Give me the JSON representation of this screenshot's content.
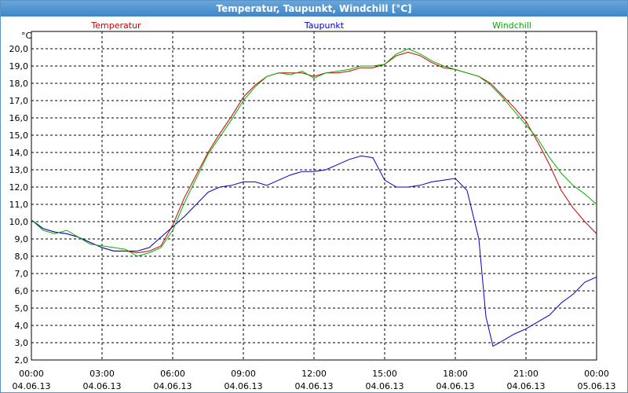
{
  "window": {
    "title": "Temperatur, Taupunkt, Windchill [°C]"
  },
  "chart_data": {
    "type": "line",
    "title": "Temperatur, Taupunkt, Windchill [°C]",
    "ylabel": "°C",
    "ylim": [
      2.0,
      21.0
    ],
    "xlim": [
      0,
      24
    ],
    "grid": true,
    "legend_position": "top",
    "y_ticks": [
      2.0,
      3.0,
      4.0,
      5.0,
      6.0,
      7.0,
      8.0,
      9.0,
      10.0,
      11.0,
      12.0,
      13.0,
      14.0,
      15.0,
      16.0,
      17.0,
      18.0,
      19.0,
      20.0
    ],
    "y_tick_labels": [
      "2,0",
      "3,0",
      "4,0",
      "5,0",
      "6,0",
      "7,0",
      "8,0",
      "9,0",
      "10,0",
      "11,0",
      "12,0",
      "13,0",
      "14,0",
      "15,0",
      "16,0",
      "17,0",
      "18,0",
      "19,0",
      "20,0"
    ],
    "x_ticks": [
      {
        "h": 0,
        "time": "00:00",
        "date": "04.06.13"
      },
      {
        "h": 3,
        "time": "03:00",
        "date": "04.06.13"
      },
      {
        "h": 6,
        "time": "06:00",
        "date": "04.06.13"
      },
      {
        "h": 9,
        "time": "09:00",
        "date": "04.06.13"
      },
      {
        "h": 12,
        "time": "12:00",
        "date": "04.06.13"
      },
      {
        "h": 15,
        "time": "15:00",
        "date": "04.06.13"
      },
      {
        "h": 18,
        "time": "18:00",
        "date": "04.06.13"
      },
      {
        "h": 21,
        "time": "21:00",
        "date": "04.06.13"
      },
      {
        "h": 24,
        "time": "00:00",
        "date": "05.06.13"
      }
    ],
    "series": [
      {
        "name": "Temperatur",
        "color": "#d00000",
        "points": [
          [
            0,
            10.1
          ],
          [
            0.5,
            9.6
          ],
          [
            1,
            9.4
          ],
          [
            1.5,
            9.3
          ],
          [
            2,
            9.1
          ],
          [
            2.5,
            8.8
          ],
          [
            3,
            8.5
          ],
          [
            3.5,
            8.3
          ],
          [
            4,
            8.3
          ],
          [
            4.5,
            8.2
          ],
          [
            5,
            8.3
          ],
          [
            5.5,
            8.6
          ],
          [
            6,
            9.8
          ],
          [
            6.5,
            11.4
          ],
          [
            7,
            12.7
          ],
          [
            7.5,
            14.0
          ],
          [
            8,
            15.1
          ],
          [
            8.5,
            16.1
          ],
          [
            9,
            17.2
          ],
          [
            9.5,
            17.9
          ],
          [
            10,
            18.4
          ],
          [
            10.5,
            18.6
          ],
          [
            11,
            18.6
          ],
          [
            11.5,
            18.6
          ],
          [
            12,
            18.4
          ],
          [
            12.5,
            18.6
          ],
          [
            13,
            18.6
          ],
          [
            13.5,
            18.7
          ],
          [
            14,
            18.9
          ],
          [
            14.5,
            18.9
          ],
          [
            15,
            19.1
          ],
          [
            15.5,
            19.6
          ],
          [
            16,
            19.8
          ],
          [
            16.5,
            19.6
          ],
          [
            17,
            19.2
          ],
          [
            17.5,
            18.9
          ],
          [
            18,
            18.8
          ],
          [
            18.5,
            18.6
          ],
          [
            19,
            18.4
          ],
          [
            19.5,
            18.0
          ],
          [
            20,
            17.3
          ],
          [
            20.5,
            16.6
          ],
          [
            21,
            15.8
          ],
          [
            21.5,
            14.6
          ],
          [
            22,
            13.3
          ],
          [
            22.5,
            11.8
          ],
          [
            23,
            10.8
          ],
          [
            23.5,
            10.0
          ],
          [
            24,
            9.3
          ]
        ]
      },
      {
        "name": "Taupunkt",
        "color": "#0000cc",
        "points": [
          [
            0,
            10.1
          ],
          [
            0.5,
            9.6
          ],
          [
            1,
            9.4
          ],
          [
            1.5,
            9.3
          ],
          [
            2,
            9.1
          ],
          [
            2.5,
            8.8
          ],
          [
            3,
            8.5
          ],
          [
            3.5,
            8.3
          ],
          [
            4,
            8.3
          ],
          [
            4.5,
            8.3
          ],
          [
            5,
            8.5
          ],
          [
            5.5,
            9.1
          ],
          [
            6,
            9.7
          ],
          [
            6.5,
            10.3
          ],
          [
            7,
            11.0
          ],
          [
            7.5,
            11.7
          ],
          [
            8,
            12.0
          ],
          [
            8.5,
            12.1
          ],
          [
            9,
            12.3
          ],
          [
            9.5,
            12.3
          ],
          [
            10,
            12.1
          ],
          [
            10.5,
            12.4
          ],
          [
            11,
            12.7
          ],
          [
            11.5,
            12.9
          ],
          [
            12,
            12.9
          ],
          [
            12.5,
            13.0
          ],
          [
            13,
            13.3
          ],
          [
            13.5,
            13.6
          ],
          [
            14,
            13.8
          ],
          [
            14.5,
            13.7
          ],
          [
            15,
            12.4
          ],
          [
            15.5,
            12.0
          ],
          [
            16,
            12.0
          ],
          [
            16.5,
            12.1
          ],
          [
            17,
            12.3
          ],
          [
            17.5,
            12.4
          ],
          [
            18,
            12.5
          ],
          [
            18.5,
            11.8
          ],
          [
            19,
            9.0
          ],
          [
            19.3,
            4.5
          ],
          [
            19.6,
            2.8
          ],
          [
            20,
            3.1
          ],
          [
            20.5,
            3.5
          ],
          [
            21,
            3.8
          ],
          [
            21.5,
            4.2
          ],
          [
            22,
            4.6
          ],
          [
            22.5,
            5.3
          ],
          [
            23,
            5.8
          ],
          [
            23.5,
            6.5
          ],
          [
            24,
            6.8
          ]
        ]
      },
      {
        "name": "Windchill",
        "color": "#00b000",
        "points": [
          [
            0,
            10.1
          ],
          [
            0.5,
            9.5
          ],
          [
            1,
            9.3
          ],
          [
            1.5,
            9.5
          ],
          [
            2,
            9.1
          ],
          [
            2.5,
            8.7
          ],
          [
            3,
            8.6
          ],
          [
            3.5,
            8.5
          ],
          [
            4,
            8.4
          ],
          [
            4.5,
            8.0
          ],
          [
            5,
            8.2
          ],
          [
            5.5,
            8.5
          ],
          [
            6,
            9.5
          ],
          [
            6.5,
            11.1
          ],
          [
            7,
            12.5
          ],
          [
            7.5,
            13.9
          ],
          [
            8,
            14.9
          ],
          [
            8.5,
            15.9
          ],
          [
            9,
            17.0
          ],
          [
            9.5,
            17.8
          ],
          [
            10,
            18.4
          ],
          [
            10.5,
            18.6
          ],
          [
            11,
            18.5
          ],
          [
            11.5,
            18.7
          ],
          [
            12,
            18.3
          ],
          [
            12.5,
            18.6
          ],
          [
            13,
            18.7
          ],
          [
            13.5,
            18.8
          ],
          [
            14,
            19.0
          ],
          [
            14.5,
            19.0
          ],
          [
            15,
            19.1
          ],
          [
            15.5,
            19.7
          ],
          [
            16,
            20.0
          ],
          [
            16.5,
            19.7
          ],
          [
            17,
            19.3
          ],
          [
            17.5,
            19.0
          ],
          [
            18,
            18.8
          ],
          [
            18.5,
            18.6
          ],
          [
            19,
            18.4
          ],
          [
            19.5,
            17.9
          ],
          [
            20,
            17.2
          ],
          [
            20.5,
            16.4
          ],
          [
            21,
            15.6
          ],
          [
            21.5,
            14.8
          ],
          [
            22,
            13.7
          ],
          [
            22.5,
            12.8
          ],
          [
            23,
            12.1
          ],
          [
            23.5,
            11.6
          ],
          [
            24,
            11.0
          ]
        ]
      }
    ]
  }
}
